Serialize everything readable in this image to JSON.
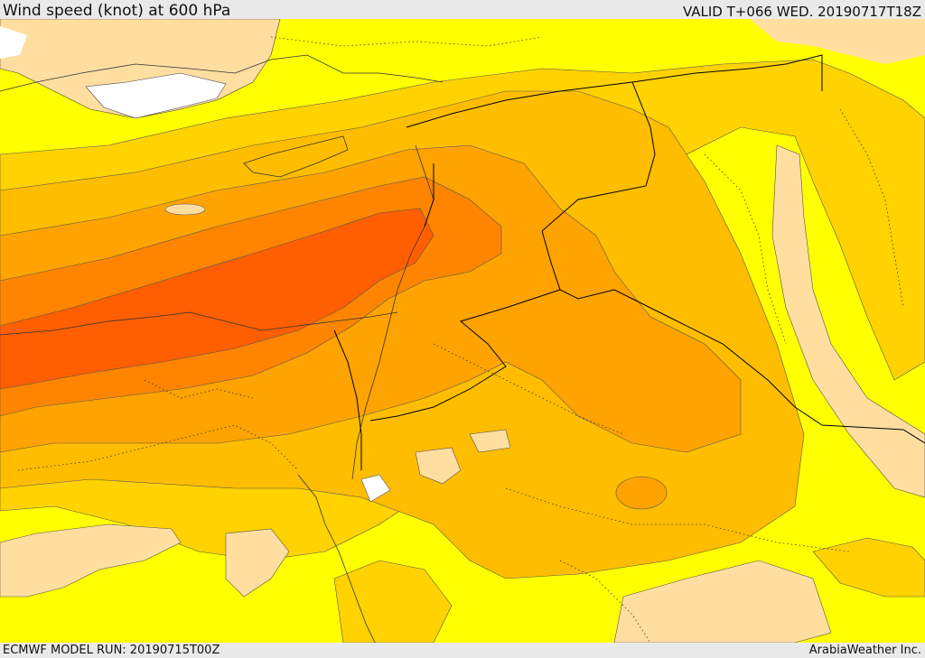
{
  "header": {
    "title": "Wind speed (knot) at 600 hPa",
    "valid": "VALID T+066 WED. 20190717T18Z"
  },
  "footer": {
    "model_run": "ECMWF MODEL RUN: 20190715T00Z",
    "credit": "ArabiaWeather Inc."
  },
  "colors": {
    "background_yellow": "#ffff00",
    "light_tan": "#ffdea0",
    "white": "#ffffff",
    "gold": "#ffd200",
    "orange_light": "#ffbd00",
    "orange": "#ffa300",
    "orange_dark": "#ff8500",
    "red_orange": "#ff5f00",
    "border": "#000000"
  }
}
